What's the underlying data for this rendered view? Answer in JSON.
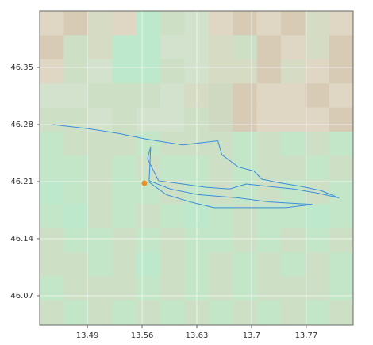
{
  "chart_data": {
    "type": "line",
    "xlim": [
      13.429,
      13.83
    ],
    "ylim": [
      46.034,
      46.419
    ],
    "xticks": [
      13.49,
      13.56,
      13.63,
      13.7,
      13.77
    ],
    "yticks": [
      46.07,
      46.14,
      46.21,
      46.28,
      46.35
    ],
    "grid": true,
    "series": [
      {
        "color": "#3a8fd8",
        "x": [
          13.446,
          13.49,
          13.53,
          13.566,
          13.612,
          13.657,
          13.662,
          13.683,
          13.703,
          13.713,
          13.733,
          13.764,
          13.789,
          13.812,
          13.784,
          13.754,
          13.723,
          13.693,
          13.672,
          13.642,
          13.612,
          13.581,
          13.567,
          13.571,
          13.569,
          13.596,
          13.632,
          13.683,
          13.723,
          13.778,
          13.744,
          13.652,
          13.622,
          13.591,
          13.568
        ],
        "values": [
          46.28,
          46.275,
          46.269,
          46.262,
          46.255,
          46.26,
          46.243,
          46.228,
          46.223,
          46.213,
          46.209,
          46.204,
          46.199,
          46.19,
          46.196,
          46.201,
          46.204,
          46.207,
          46.201,
          46.203,
          46.207,
          46.211,
          46.238,
          46.253,
          46.211,
          46.201,
          46.194,
          46.19,
          46.185,
          46.182,
          46.178,
          46.178,
          46.185,
          46.194,
          46.21
        ]
      },
      {
        "type": "scatter",
        "color": "#e8902c",
        "x": [
          13.563
        ],
        "values": [
          46.208
        ]
      }
    ]
  }
}
